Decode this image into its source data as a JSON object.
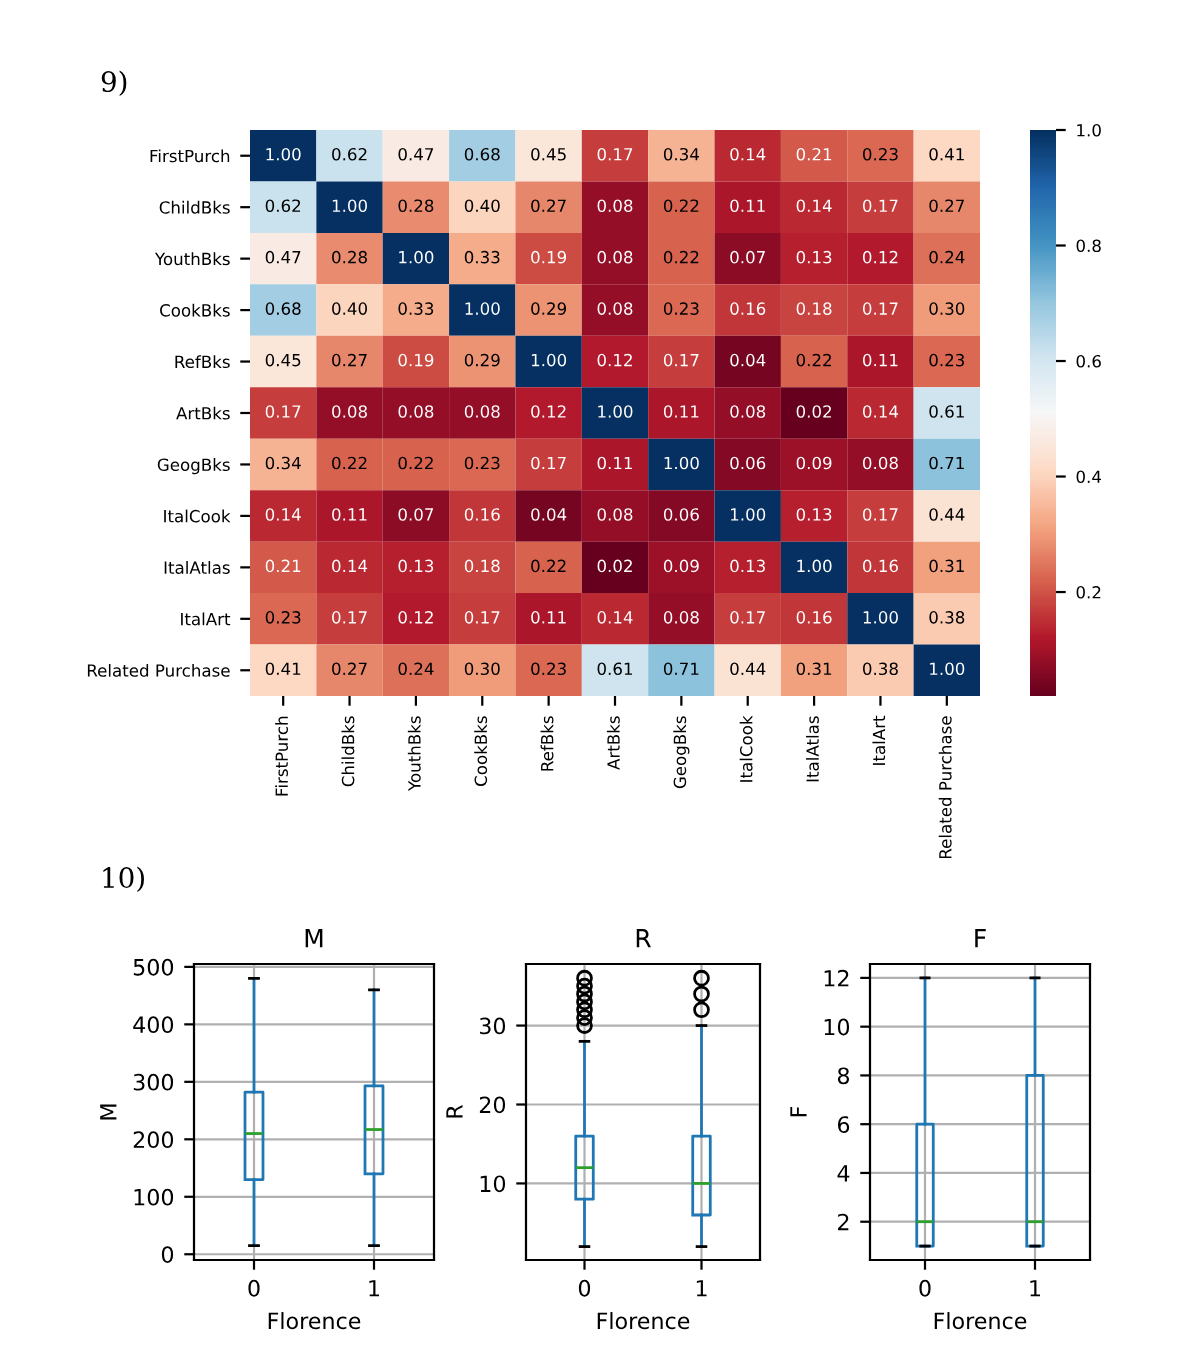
{
  "chart_data": [
    {
      "type": "heatmap",
      "annotations": [
        "9)"
      ],
      "categories": [
        "FirstPurch",
        "ChildBks",
        "YouthBks",
        "CookBks",
        "RefBks",
        "ArtBks",
        "GeogBks",
        "ItalCook",
        "ItalAtlas",
        "ItalArt",
        "Related Purchase"
      ],
      "y_categories": [
        "FirstPurch",
        "ChildBks",
        "YouthBks",
        "CookBks",
        "RefBks",
        "ArtBks",
        "GeogBks",
        "ItalCook",
        "ItalAtlas",
        "ItalArt",
        "Related Purchase"
      ],
      "cells": [
        [
          1.0,
          0.62,
          0.47,
          0.68,
          0.45,
          0.17,
          0.34,
          0.14,
          0.21,
          0.23,
          0.41
        ],
        [
          0.62,
          1.0,
          0.28,
          0.4,
          0.27,
          0.08,
          0.22,
          0.11,
          0.14,
          0.17,
          0.27
        ],
        [
          0.47,
          0.28,
          1.0,
          0.33,
          0.19,
          0.08,
          0.22,
          0.07,
          0.13,
          0.12,
          0.24
        ],
        [
          0.68,
          0.4,
          0.33,
          1.0,
          0.29,
          0.08,
          0.23,
          0.16,
          0.18,
          0.17,
          0.3
        ],
        [
          0.45,
          0.27,
          0.19,
          0.29,
          1.0,
          0.12,
          0.17,
          0.04,
          0.22,
          0.11,
          0.23
        ],
        [
          0.17,
          0.08,
          0.08,
          0.08,
          0.12,
          1.0,
          0.11,
          0.08,
          0.02,
          0.14,
          0.61
        ],
        [
          0.34,
          0.22,
          0.22,
          0.23,
          0.17,
          0.11,
          1.0,
          0.06,
          0.09,
          0.08,
          0.71
        ],
        [
          0.14,
          0.11,
          0.07,
          0.16,
          0.04,
          0.08,
          0.06,
          1.0,
          0.13,
          0.17,
          0.44
        ],
        [
          0.21,
          0.14,
          0.13,
          0.18,
          0.22,
          0.02,
          0.09,
          0.13,
          1.0,
          0.16,
          0.31
        ],
        [
          0.23,
          0.17,
          0.12,
          0.17,
          0.11,
          0.14,
          0.08,
          0.17,
          0.16,
          1.0,
          0.38
        ],
        [
          0.41,
          0.27,
          0.24,
          0.3,
          0.23,
          0.61,
          0.71,
          0.44,
          0.31,
          0.38,
          1.0
        ]
      ],
      "cell_labels": [
        [
          "1.00",
          "0.62",
          "0.47",
          "0.68",
          "0.45",
          "0.17",
          "0.34",
          "0.14",
          "0.21",
          "0.23",
          "0.41"
        ],
        [
          "0.62",
          "1.00",
          "0.28",
          "0.40",
          "0.27",
          "0.08",
          "0.22",
          "0.11",
          "0.14",
          "0.17",
          "0.27"
        ],
        [
          "0.47",
          "0.28",
          "1.00",
          "0.33",
          "0.19",
          "0.08",
          "0.22",
          "0.07",
          "0.13",
          "0.12",
          "0.24"
        ],
        [
          "0.68",
          "0.40",
          "0.33",
          "1.00",
          "0.29",
          "0.08",
          "0.23",
          "0.16",
          "0.18",
          "0.17",
          "0.30"
        ],
        [
          "0.45",
          "0.27",
          "0.19",
          "0.29",
          "1.00",
          "0.12",
          "0.17",
          "0.04",
          "0.22",
          "0.11",
          "0.23"
        ],
        [
          "0.17",
          "0.08",
          "0.08",
          "0.08",
          "0.12",
          "1.00",
          "0.11",
          "0.08",
          "0.02",
          "0.14",
          "0.61"
        ],
        [
          "0.34",
          "0.22",
          "0.22",
          "0.23",
          "0.17",
          "0.11",
          "1.00",
          "0.06",
          "0.09",
          "0.08",
          "0.71"
        ],
        [
          "0.14",
          "0.11",
          "0.07",
          "0.16",
          "0.04",
          "0.08",
          "0.06",
          "1.00",
          "0.13",
          "0.17",
          "0.44"
        ],
        [
          "0.21",
          "0.14",
          "0.13",
          "0.18",
          "0.22",
          "0.02",
          "0.09",
          "0.13",
          "1.00",
          "0.16",
          "0.31"
        ],
        [
          "0.23",
          "0.17",
          "0.12",
          "0.17",
          "0.11",
          "0.14",
          "0.08",
          "0.17",
          "0.16",
          "1.00",
          "0.38"
        ],
        [
          "0.41",
          "0.27",
          "0.24",
          "0.30",
          "0.23",
          "0.61",
          "0.71",
          "0.44",
          "0.31",
          "0.38",
          "1.00"
        ]
      ],
      "clim": [
        0.02,
        1.0
      ],
      "cticks": [
        {
          "value": 0.2,
          "label": "0.2"
        },
        {
          "value": 0.4,
          "label": "0.4"
        },
        {
          "value": 0.6,
          "label": "0.6"
        },
        {
          "value": 0.8,
          "label": "0.8"
        },
        {
          "value": 1.0,
          "label": "1.0"
        }
      ]
    },
    {
      "type": "box",
      "annotations": [
        "10)"
      ],
      "title": "M",
      "xlabel": "Florence",
      "ylabel": "M",
      "categories": [
        "0",
        "1"
      ],
      "grid": true,
      "ylim": [
        -10,
        505
      ],
      "yticks": [
        0,
        100,
        200,
        300,
        400,
        500
      ],
      "series": [
        {
          "color": "#1f77b4",
          "boxes": [
            {
              "low": 15,
              "q1": 130,
              "median": 210,
              "q3": 282,
              "high": 480
            },
            {
              "low": 15,
              "q1": 140,
              "median": 217,
              "q3": 293,
              "high": 460
            }
          ]
        }
      ]
    },
    {
      "type": "box",
      "title": "R",
      "xlabel": "Florence",
      "ylabel": "R",
      "categories": [
        "0",
        "1"
      ],
      "grid": true,
      "ylim": [
        0.3,
        37.8
      ],
      "yticks": [
        10,
        20,
        30
      ],
      "series": [
        {
          "color": "#1f77b4",
          "boxes": [
            {
              "low": 2,
              "q1": 8,
              "median": 12,
              "q3": 16,
              "high": 28,
              "outliers": [
                30,
                31,
                32,
                33,
                34,
                35,
                36
              ]
            },
            {
              "low": 2,
              "q1": 6,
              "median": 10,
              "q3": 16,
              "high": 30,
              "outliers": [
                32,
                34,
                36
              ]
            }
          ]
        }
      ]
    },
    {
      "type": "box",
      "title": "F",
      "xlabel": "Florence",
      "ylabel": "F",
      "categories": [
        "0",
        "1"
      ],
      "grid": true,
      "ylim": [
        0.43,
        12.57
      ],
      "yticks": [
        2,
        4,
        6,
        8,
        10,
        12
      ],
      "series": [
        {
          "color": "#1f77b4",
          "boxes": [
            {
              "low": 1,
              "q1": 1,
              "median": 2,
              "q3": 6,
              "high": 12
            },
            {
              "low": 1,
              "q1": 1,
              "median": 2,
              "q3": 8,
              "high": 12
            }
          ]
        }
      ]
    }
  ]
}
